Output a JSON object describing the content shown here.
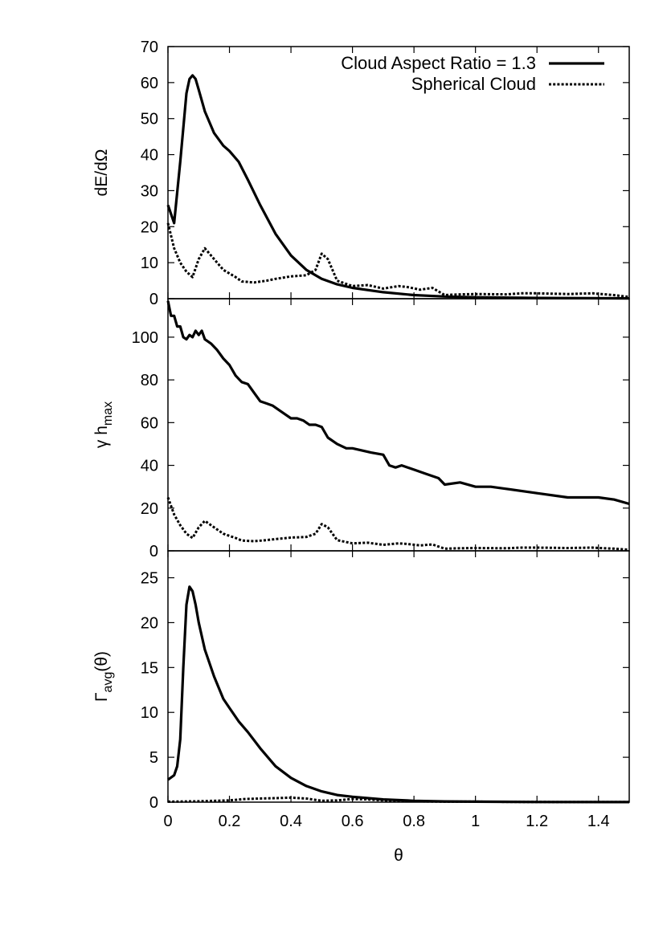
{
  "chart_data": [
    {
      "type": "line",
      "ylabel": "dE/dΩ",
      "xlim": [
        0,
        1.5
      ],
      "ylim": [
        0,
        70
      ],
      "yticks": [
        "0",
        "10",
        "20",
        "30",
        "40",
        "50",
        "60",
        "70"
      ],
      "legend": {
        "position": "top-right"
      },
      "series": [
        {
          "name": "Cloud Aspect Ratio = 1.3",
          "style": "solid",
          "x": [
            0,
            0.02,
            0.04,
            0.06,
            0.07,
            0.08,
            0.09,
            0.1,
            0.12,
            0.15,
            0.18,
            0.2,
            0.23,
            0.26,
            0.3,
            0.35,
            0.4,
            0.45,
            0.5,
            0.55,
            0.6,
            0.7,
            0.8,
            0.9,
            1.0,
            1.2,
            1.5
          ],
          "y": [
            26,
            21,
            38,
            57,
            61,
            62,
            61,
            58,
            52,
            46,
            42.5,
            41,
            38,
            33,
            26,
            18,
            12,
            8,
            5.5,
            4,
            3,
            1.8,
            1,
            0.6,
            0.4,
            0.2,
            0.1
          ]
        },
        {
          "name": "Spherical Cloud",
          "style": "dotted",
          "x": [
            0,
            0.02,
            0.04,
            0.06,
            0.08,
            0.1,
            0.12,
            0.14,
            0.16,
            0.18,
            0.2,
            0.22,
            0.24,
            0.28,
            0.32,
            0.35,
            0.4,
            0.45,
            0.48,
            0.5,
            0.52,
            0.55,
            0.6,
            0.65,
            0.7,
            0.75,
            0.78,
            0.82,
            0.86,
            0.88,
            0.9,
            0.95,
            1.0,
            1.1,
            1.15,
            1.2,
            1.3,
            1.38,
            1.45,
            1.5
          ],
          "y": [
            21,
            14,
            10,
            7.5,
            6,
            11,
            14,
            12,
            10,
            8,
            7,
            6,
            4.8,
            4.5,
            5,
            5.5,
            6.2,
            6.5,
            8,
            12.5,
            11,
            5,
            3.5,
            3.8,
            2.8,
            3.5,
            3.2,
            2.5,
            3,
            2,
            1,
            1.2,
            1.3,
            1.2,
            1.5,
            1.5,
            1.3,
            1.5,
            1,
            0.5
          ]
        }
      ]
    },
    {
      "type": "line",
      "ylabel": "γ h_max",
      "xlim": [
        0,
        1.5
      ],
      "ylim": [
        0,
        118
      ],
      "yticks": [
        "0",
        "20",
        "40",
        "60",
        "80",
        "100"
      ],
      "series": [
        {
          "name": "Cloud Aspect Ratio = 1.3",
          "style": "solid",
          "x": [
            0,
            0.01,
            0.02,
            0.03,
            0.04,
            0.05,
            0.06,
            0.07,
            0.08,
            0.09,
            0.1,
            0.11,
            0.12,
            0.14,
            0.16,
            0.18,
            0.2,
            0.22,
            0.24,
            0.26,
            0.28,
            0.3,
            0.32,
            0.34,
            0.36,
            0.38,
            0.4,
            0.42,
            0.44,
            0.46,
            0.48,
            0.5,
            0.52,
            0.55,
            0.58,
            0.6,
            0.63,
            0.66,
            0.7,
            0.72,
            0.74,
            0.76,
            0.8,
            0.84,
            0.88,
            0.9,
            0.95,
            1.0,
            1.05,
            1.1,
            1.2,
            1.3,
            1.4,
            1.45,
            1.5
          ],
          "y": [
            117,
            110,
            110,
            105,
            105,
            100,
            99,
            101,
            100,
            103,
            101,
            103,
            99,
            97,
            94,
            90,
            87,
            82,
            79,
            78,
            74,
            70,
            69,
            68,
            66,
            64,
            62,
            62,
            61,
            59,
            59,
            58,
            53,
            50,
            48,
            48,
            47,
            46,
            45,
            40,
            39,
            40,
            38,
            36,
            34,
            31,
            32,
            30,
            30,
            29,
            27,
            25,
            25,
            24,
            22
          ]
        },
        {
          "name": "Spherical Cloud",
          "style": "dotted",
          "x": [
            0,
            0.02,
            0.04,
            0.06,
            0.08,
            0.1,
            0.12,
            0.14,
            0.16,
            0.18,
            0.2,
            0.22,
            0.24,
            0.28,
            0.32,
            0.35,
            0.4,
            0.45,
            0.48,
            0.5,
            0.52,
            0.55,
            0.6,
            0.65,
            0.7,
            0.75,
            0.78,
            0.82,
            0.86,
            0.88,
            0.9,
            0.95,
            1.0,
            1.1,
            1.15,
            1.2,
            1.3,
            1.38,
            1.45,
            1.5
          ],
          "y": [
            25,
            17,
            12,
            8,
            6,
            11,
            14,
            12,
            10,
            8,
            7,
            6,
            4.8,
            4.5,
            5,
            5.5,
            6.2,
            6.5,
            8,
            12.5,
            11,
            5,
            3.5,
            3.8,
            2.8,
            3.5,
            3.2,
            2.5,
            3,
            2,
            1,
            1.2,
            1.3,
            1.2,
            1.5,
            1.5,
            1.3,
            1.5,
            1,
            0.5
          ]
        }
      ]
    },
    {
      "type": "line",
      "xlabel": "θ",
      "ylabel": "Γ_avg(θ)",
      "xlim": [
        0,
        1.5
      ],
      "ylim": [
        0,
        28
      ],
      "yticks": [
        "0",
        "5",
        "10",
        "15",
        "20",
        "25"
      ],
      "xticks": [
        "0",
        "0.2",
        "0.4",
        "0.6",
        "0.8",
        "1",
        "1.2",
        "1.4"
      ],
      "series": [
        {
          "name": "Cloud Aspect Ratio = 1.3",
          "style": "solid",
          "x": [
            0,
            0.02,
            0.03,
            0.04,
            0.05,
            0.06,
            0.07,
            0.08,
            0.09,
            0.1,
            0.12,
            0.15,
            0.18,
            0.2,
            0.23,
            0.26,
            0.3,
            0.35,
            0.4,
            0.45,
            0.5,
            0.55,
            0.6,
            0.7,
            0.8,
            0.9,
            1.0,
            1.2,
            1.5
          ],
          "y": [
            2.5,
            3,
            4,
            7,
            15,
            22,
            24,
            23.5,
            22,
            20,
            17,
            14,
            11.5,
            10.5,
            9,
            7.8,
            6,
            4,
            2.7,
            1.8,
            1.2,
            0.8,
            0.6,
            0.3,
            0.15,
            0.08,
            0.05,
            0.02,
            0.01
          ]
        },
        {
          "name": "Spherical Cloud",
          "style": "dotted",
          "x": [
            0,
            0.1,
            0.2,
            0.25,
            0.3,
            0.35,
            0.4,
            0.45,
            0.5,
            0.55,
            0.6,
            0.65,
            0.7,
            0.8,
            0.9,
            1.0,
            1.2,
            1.5
          ],
          "y": [
            0.05,
            0.1,
            0.2,
            0.35,
            0.4,
            0.45,
            0.5,
            0.4,
            0.15,
            0.2,
            0.35,
            0.3,
            0.2,
            0.1,
            0.05,
            0.05,
            0.02,
            0.01
          ]
        }
      ]
    }
  ]
}
